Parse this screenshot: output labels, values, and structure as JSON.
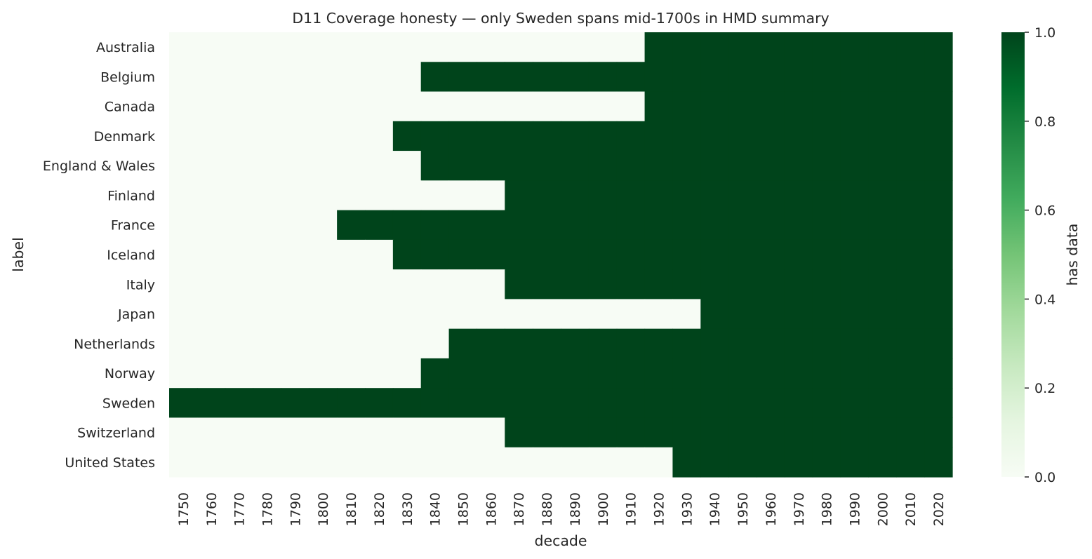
{
  "chart_data": {
    "type": "heatmap",
    "title": "D11 Coverage honesty — only Sweden spans mid-1700s in HMD summary",
    "xlabel": "decade",
    "ylabel": "label",
    "colorbar_label": "has data",
    "colorbar_ticks": [
      "0.0",
      "0.2",
      "0.4",
      "0.6",
      "0.8",
      "1.0"
    ],
    "value_range": [
      0,
      1
    ],
    "colormap": "Greens",
    "x": [
      "1750",
      "1760",
      "1770",
      "1780",
      "1790",
      "1800",
      "1810",
      "1820",
      "1830",
      "1840",
      "1850",
      "1860",
      "1870",
      "1880",
      "1890",
      "1900",
      "1910",
      "1920",
      "1930",
      "1940",
      "1950",
      "1960",
      "1970",
      "1980",
      "1990",
      "2000",
      "2010",
      "2020"
    ],
    "rows": [
      {
        "label": "Australia",
        "first_decade": 1920
      },
      {
        "label": "Belgium",
        "first_decade": 1840
      },
      {
        "label": "Canada",
        "first_decade": 1920
      },
      {
        "label": "Denmark",
        "first_decade": 1830
      },
      {
        "label": "England & Wales",
        "first_decade": 1840
      },
      {
        "label": "Finland",
        "first_decade": 1870
      },
      {
        "label": "France",
        "first_decade": 1810
      },
      {
        "label": "Iceland",
        "first_decade": 1830
      },
      {
        "label": "Italy",
        "first_decade": 1870
      },
      {
        "label": "Japan",
        "first_decade": 1940
      },
      {
        "label": "Netherlands",
        "first_decade": 1850
      },
      {
        "label": "Norway",
        "first_decade": 1840
      },
      {
        "label": "Sweden",
        "first_decade": 1750
      },
      {
        "label": "Switzerland",
        "first_decade": 1870
      },
      {
        "label": "United States",
        "first_decade": 1930
      }
    ]
  }
}
